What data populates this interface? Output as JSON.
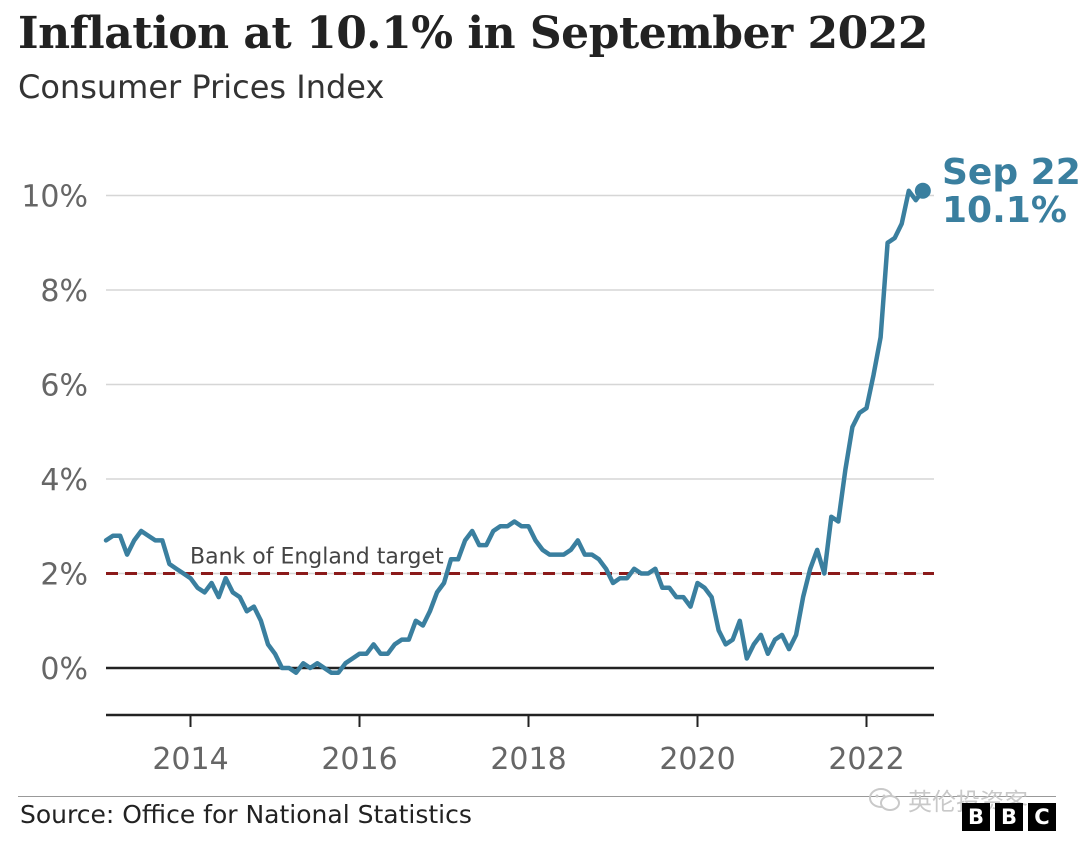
{
  "header": {
    "title": "Inflation at 10.1% in September 2022",
    "subtitle": "Consumer Prices Index"
  },
  "footer": {
    "source": "Source: Office for National Statistics",
    "watermark": "英伦投资客",
    "logo_letters": [
      "B",
      "B",
      "C"
    ]
  },
  "colors": {
    "series": "#3a7f9f",
    "target": "#8b1a1a",
    "grid": "#d6d6d6",
    "axis": "#222222",
    "tick_text": "#666666"
  },
  "chart_data": {
    "type": "line",
    "title": "Inflation at 10.1% in September 2022",
    "subtitle": "Consumer Prices Index",
    "xlabel": "",
    "ylabel": "",
    "x_start": "2013-01",
    "x_end": "2022-09",
    "ylim": [
      -1,
      11
    ],
    "y_ticks": [
      0,
      2,
      4,
      6,
      8,
      10
    ],
    "y_tick_labels": [
      "0%",
      "2%",
      "4%",
      "6%",
      "8%",
      "10%"
    ],
    "x_ticks": [
      2014,
      2016,
      2018,
      2020,
      2022
    ],
    "x_tick_labels": [
      "2014",
      "2016",
      "2018",
      "2020",
      "2022"
    ],
    "grid": true,
    "series": [
      {
        "unit": "%",
        "frequency": "monthly",
        "values": [
          2.7,
          2.8,
          2.8,
          2.4,
          2.7,
          2.9,
          2.8,
          2.7,
          2.7,
          2.2,
          2.1,
          2.0,
          1.9,
          1.7,
          1.6,
          1.8,
          1.5,
          1.9,
          1.6,
          1.5,
          1.2,
          1.3,
          1.0,
          0.5,
          0.3,
          0.0,
          0.0,
          -0.1,
          0.1,
          0.0,
          0.1,
          0.0,
          -0.1,
          -0.1,
          0.1,
          0.2,
          0.3,
          0.3,
          0.5,
          0.3,
          0.3,
          0.5,
          0.6,
          0.6,
          1.0,
          0.9,
          1.2,
          1.6,
          1.8,
          2.3,
          2.3,
          2.7,
          2.9,
          2.6,
          2.6,
          2.9,
          3.0,
          3.0,
          3.1,
          3.0,
          3.0,
          2.7,
          2.5,
          2.4,
          2.4,
          2.4,
          2.5,
          2.7,
          2.4,
          2.4,
          2.3,
          2.1,
          1.8,
          1.9,
          1.9,
          2.1,
          2.0,
          2.0,
          2.1,
          1.7,
          1.7,
          1.5,
          1.5,
          1.3,
          1.8,
          1.7,
          1.5,
          0.8,
          0.5,
          0.6,
          1.0,
          0.2,
          0.5,
          0.7,
          0.3,
          0.6,
          0.7,
          0.4,
          0.7,
          1.5,
          2.1,
          2.5,
          2.0,
          3.2,
          3.1,
          4.2,
          5.1,
          5.4,
          5.5,
          6.2,
          7.0,
          9.0,
          9.1,
          9.4,
          10.1,
          9.9,
          10.1
        ]
      }
    ],
    "reference_line": {
      "value": 2,
      "label": "Bank of England target",
      "style": "dashed"
    },
    "end_annotation": {
      "label": "Sep 22",
      "value_label": "10.1%"
    }
  }
}
